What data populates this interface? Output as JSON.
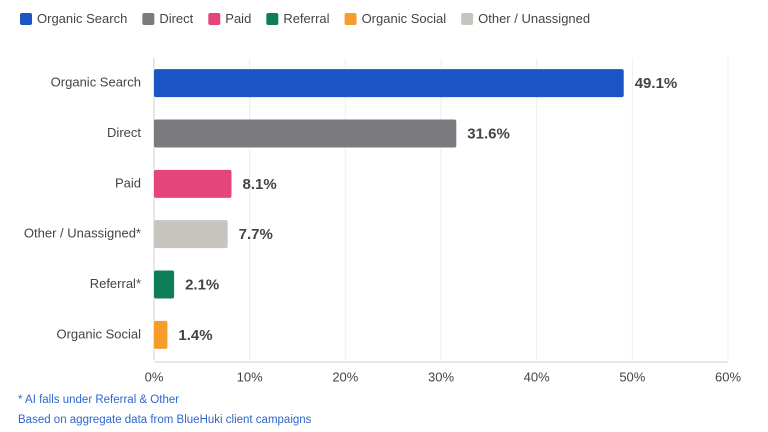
{
  "chart_data": {
    "type": "hbar",
    "legend": [
      {
        "name": "Organic Search",
        "color": "#1a55c3"
      },
      {
        "name": "Direct",
        "color": "#7b7b7f"
      },
      {
        "name": "Paid",
        "color": "#e4457a"
      },
      {
        "name": "Referral",
        "color": "#0e7d59"
      },
      {
        "name": "Organic Social",
        "color": "#f59c2c"
      },
      {
        "name": "Other / Unassigned",
        "color": "#c8c4bf"
      }
    ],
    "categories": [
      "Organic Search",
      "Direct",
      "Paid",
      "Other / Unassigned*",
      "Referral*",
      "Organic Social"
    ],
    "values": [
      49.1,
      31.6,
      8.1,
      7.7,
      2.1,
      1.4
    ],
    "value_labels": [
      "49.1%",
      "31.6%",
      "8.1%",
      "7.7%",
      "2.1%",
      "1.4%"
    ],
    "colors": [
      "#1a55c3",
      "#7b7b7f",
      "#e4457a",
      "#c8c4bf",
      "#0e7d59",
      "#f59c2c"
    ],
    "label_colors": [
      "#1a55c3",
      "#6b6b70",
      "#e4457a",
      "#a3a09c",
      "#0e7d59",
      "#f59c2c"
    ],
    "xlim": [
      0,
      60
    ],
    "xticks": [
      {
        "value": 0,
        "label": "0%"
      },
      {
        "value": 10,
        "label": "10%"
      },
      {
        "value": 20,
        "label": "20%"
      },
      {
        "value": 30,
        "label": "30%"
      },
      {
        "value": 40,
        "label": "40%"
      },
      {
        "value": 50,
        "label": "50%"
      },
      {
        "value": 60,
        "label": "60%"
      }
    ],
    "grid": true,
    "notes": [
      "* AI falls under Referral & Other",
      "Based on aggregate data from BlueHuki client campaigns"
    ]
  }
}
